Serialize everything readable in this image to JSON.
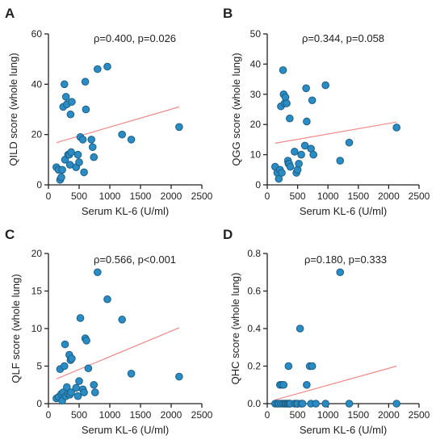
{
  "chart_data": [
    {
      "type": "scatter",
      "panel": "A",
      "stat": "ρ=0.400, p=0.026",
      "xlabel": "Serum KL-6 (U/ml)",
      "ylabel": "QILD score (whole lung)",
      "xlim": [
        0,
        2500
      ],
      "ylim": [
        0,
        60
      ],
      "xticks": [
        "0",
        "500",
        "1000",
        "1500",
        "2000",
        "2500"
      ],
      "yticks": [
        "0",
        "20",
        "40",
        "60"
      ],
      "points": [
        [
          130,
          7
        ],
        [
          165,
          6
        ],
        [
          190,
          2
        ],
        [
          210,
          3
        ],
        [
          225,
          6
        ],
        [
          240,
          31
        ],
        [
          260,
          40
        ],
        [
          270,
          10
        ],
        [
          285,
          35
        ],
        [
          300,
          32
        ],
        [
          320,
          12
        ],
        [
          340,
          12
        ],
        [
          350,
          8
        ],
        [
          360,
          28
        ],
        [
          370,
          13
        ],
        [
          380,
          33
        ],
        [
          450,
          7
        ],
        [
          480,
          12
        ],
        [
          500,
          9
        ],
        [
          520,
          19
        ],
        [
          560,
          18
        ],
        [
          580,
          5
        ],
        [
          600,
          41
        ],
        [
          610,
          30
        ],
        [
          700,
          18
        ],
        [
          720,
          15
        ],
        [
          740,
          11
        ],
        [
          800,
          46
        ],
        [
          960,
          47
        ],
        [
          1200,
          20
        ],
        [
          1350,
          18
        ],
        [
          2130,
          23
        ]
      ],
      "trend": [
        [
          130,
          16.8
        ],
        [
          2130,
          31
        ]
      ],
      "point_color": "#2a8cc4",
      "trend_color": "#f08a8a"
    },
    {
      "type": "scatter",
      "panel": "B",
      "stat": "ρ=0.344, p=0.058",
      "xlabel": "Serum KL-6 (U/ml)",
      "ylabel": "QGG score (whole lung)",
      "xlim": [
        0,
        2500
      ],
      "ylim": [
        0,
        50
      ],
      "xticks": [
        "0",
        "500",
        "1000",
        "1500",
        "2000",
        "2500"
      ],
      "yticks": [
        "0",
        "10",
        "20",
        "30",
        "40",
        "50"
      ],
      "points": [
        [
          130,
          6
        ],
        [
          165,
          4
        ],
        [
          190,
          2
        ],
        [
          210,
          5
        ],
        [
          225,
          26
        ],
        [
          240,
          4
        ],
        [
          260,
          38
        ],
        [
          270,
          30
        ],
        [
          285,
          27
        ],
        [
          300,
          29
        ],
        [
          320,
          27
        ],
        [
          340,
          8
        ],
        [
          350,
          7
        ],
        [
          360,
          7
        ],
        [
          370,
          22
        ],
        [
          380,
          6
        ],
        [
          450,
          11
        ],
        [
          480,
          4
        ],
        [
          500,
          5
        ],
        [
          520,
          7
        ],
        [
          560,
          10
        ],
        [
          620,
          13
        ],
        [
          640,
          32
        ],
        [
          650,
          21
        ],
        [
          720,
          12
        ],
        [
          740,
          28
        ],
        [
          760,
          10
        ],
        [
          960,
          33
        ],
        [
          1200,
          8
        ],
        [
          1350,
          14
        ],
        [
          2130,
          19
        ]
      ],
      "trend": [
        [
          130,
          13.8
        ],
        [
          2130,
          20.8
        ]
      ],
      "point_color": "#2a8cc4",
      "trend_color": "#f08a8a"
    },
    {
      "type": "scatter",
      "panel": "C",
      "stat": "ρ=0.566, p<0.001",
      "xlabel": "Serum KL-6 (U/ml)",
      "ylabel": "QLF score (whole lung)",
      "xlim": [
        0,
        2500
      ],
      "ylim": [
        0,
        20
      ],
      "xticks": [
        "0",
        "500",
        "1000",
        "1500",
        "2000",
        "2500"
      ],
      "yticks": [
        "0",
        "5",
        "10",
        "15",
        "20"
      ],
      "points": [
        [
          130,
          0.7
        ],
        [
          165,
          0.9
        ],
        [
          190,
          4.6
        ],
        [
          210,
          1.3
        ],
        [
          225,
          0.4
        ],
        [
          240,
          1.5
        ],
        [
          260,
          5.0
        ],
        [
          270,
          7.9
        ],
        [
          285,
          1.0
        ],
        [
          300,
          2.2
        ],
        [
          320,
          1.3
        ],
        [
          340,
          6.5
        ],
        [
          350,
          1.2
        ],
        [
          360,
          5.8
        ],
        [
          370,
          1.5
        ],
        [
          380,
          6.0
        ],
        [
          450,
          2.1
        ],
        [
          480,
          1.0
        ],
        [
          500,
          3.0
        ],
        [
          520,
          11.4
        ],
        [
          560,
          1.9
        ],
        [
          580,
          1.5
        ],
        [
          600,
          8.7
        ],
        [
          620,
          8.4
        ],
        [
          650,
          4.7
        ],
        [
          740,
          2.5
        ],
        [
          760,
          1.5
        ],
        [
          800,
          17.5
        ],
        [
          960,
          13.9
        ],
        [
          1200,
          11.2
        ],
        [
          1350,
          4.0
        ],
        [
          2130,
          3.6
        ]
      ],
      "trend": [
        [
          130,
          3.3
        ],
        [
          2130,
          10.1
        ]
      ],
      "point_color": "#2a8cc4",
      "trend_color": "#f08a8a"
    },
    {
      "type": "scatter",
      "panel": "D",
      "stat": "ρ=0.180, p=0.333",
      "xlabel": "Serum KL-6 (U/ml)",
      "ylabel": "QHC score (whole lung)",
      "xlim": [
        0,
        2500
      ],
      "ylim": [
        0,
        0.8
      ],
      "xticks": [
        "0",
        "500",
        "1000",
        "1500",
        "2000",
        "2500"
      ],
      "yticks": [
        "0.0",
        "0.2",
        "0.4",
        "0.6",
        "0.8"
      ],
      "points": [
        [
          130,
          0
        ],
        [
          165,
          0
        ],
        [
          190,
          0
        ],
        [
          210,
          0.1
        ],
        [
          225,
          0
        ],
        [
          240,
          0.1
        ],
        [
          260,
          0
        ],
        [
          270,
          0.1
        ],
        [
          285,
          0
        ],
        [
          300,
          0
        ],
        [
          320,
          0
        ],
        [
          340,
          0
        ],
        [
          350,
          0.2
        ],
        [
          360,
          0
        ],
        [
          370,
          0
        ],
        [
          380,
          0
        ],
        [
          450,
          0
        ],
        [
          480,
          0
        ],
        [
          500,
          0
        ],
        [
          540,
          0.4
        ],
        [
          560,
          0
        ],
        [
          580,
          0
        ],
        [
          650,
          0.1
        ],
        [
          700,
          0.2
        ],
        [
          720,
          0
        ],
        [
          740,
          0.2
        ],
        [
          800,
          0
        ],
        [
          960,
          0
        ],
        [
          1200,
          0.7
        ],
        [
          1350,
          0
        ],
        [
          2130,
          0
        ]
      ],
      "trend": [
        [
          130,
          0.02
        ],
        [
          2130,
          0.2
        ]
      ],
      "point_color": "#2a8cc4",
      "trend_color": "#f08a8a"
    }
  ]
}
